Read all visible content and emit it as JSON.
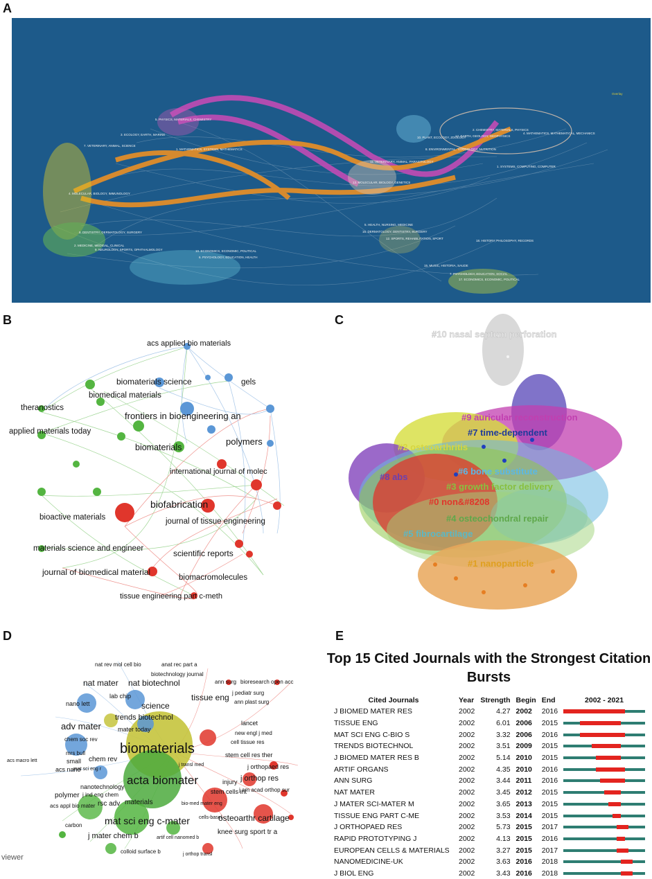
{
  "panels": {
    "a": "A",
    "b": "B",
    "c": "C",
    "d": "D",
    "e": "E"
  },
  "colors": {
    "panel_a_bg": "#1d5a8a",
    "red_cluster": "#e0362c",
    "green_cluster": "#54b541",
    "blue_cluster": "#5b97d6",
    "yellow_cluster": "#c9d12a",
    "burst_red": "#e3241f",
    "burst_track": "#2e7d72"
  },
  "panel_a": {
    "left_labels": [
      "5. PHYSICS, MATERIALS, CHEMISTRY",
      "3. ECOLOGY, EARTH, MARINE",
      "7. VETERINARY, ANIMAL, SCIENCE",
      "1. MATHEMATICS, SYSTEMS, MATHEMATICS",
      "4. MOLECULAR, BIOLOGY, IMMUNOLOGY",
      "8. DENTISTRY, DERMATOLOGY, SURGERY",
      "2. MEDICINE, MEDICAL, CLINICAL",
      "9. NEUROLOGY, SPORTS, OPHTHALMOLOGY",
      "6. PSYCHOLOGY, EDUCATION, HEALTH",
      "10. ECONOMICS, ECONOMIC, POLITICAL"
    ],
    "right_labels": [
      "2. CHEMISTRY, MATERIALS, PHYSICS",
      "4. MATHEMATICS, MATHEMATICAL, MECHANICS",
      "10. PLANT, ECOLOGY, ZOOLOGY",
      "14. EARTH, GEOLOGY, GEOPHYSICS",
      "8. ENVIRONMENTAL, TOXICOLOGY, NUTRITION",
      "1. SYSTEMS, COMPUTING, COMPUTER",
      "11. VETERINARY, ANIMAL, PARASITOLOGY",
      "13. MOLECULAR, BIOLOGY, GENETICS",
      "5. HEALTH, NURSING, MEDICINE",
      "16. DERMATOLOGY, DENTISTRY, SURGERY",
      "12. SPORTS, REHABILITATION, SPORT",
      "18. HISTORY, PHILOSOPHY, RECORDS",
      "15. MUSIC, HISTORIA, SAUDE",
      "7. PSYCHOLOGY, EDUCATION, SOCIAL",
      "17. ECONOMICS, ECONOMIC, POLITICAL"
    ],
    "legend": "Overlay"
  },
  "panel_b": {
    "labels": [
      "acs applied bio materials",
      "biomaterials science",
      "biomedical materials",
      "gels",
      "theranostics",
      "frontiers in bioengineering an",
      "applied materials today",
      "polymers",
      "biomaterials",
      "international journal of molec",
      "bioactive materials",
      "biofabrication",
      "journal of tissue engineering",
      "materials science and engineer",
      "scientific reports",
      "journal of biomedical material",
      "biomacromolecules",
      "tissue engineering part c-meth"
    ]
  },
  "panel_c": {
    "clusters": [
      "#10 nasal septum perforation",
      "#9 auricular reconstruction",
      "#7 time-dependent",
      "#2 osteoarthritis",
      "#6 bone substitute",
      "#8 abs",
      "#3 growth factor delivery",
      "#0 non&#8208",
      "#4 osteochondral repair",
      "#5 fibrocartilage",
      "#1 nanoparticle"
    ]
  },
  "panel_d": {
    "labels": [
      "nat rev mol cell bio",
      "anat rec part a",
      "biotechnology journal",
      "nat mater",
      "nat biotechnol",
      "ann surg",
      "bioresearch open acc",
      "lab chip",
      "j pediatr surg",
      "tissue eng",
      "ann plast surg",
      "nano lett",
      "science",
      "trends biotechnol",
      "adv mater",
      "mater today",
      "lancet",
      "new engl j med",
      "chem soc rev",
      "biomaterials",
      "cell tissue res",
      "acs macro lett",
      "small",
      "chem rev",
      "mrs bull",
      "stem cell res ther",
      "acs nano",
      "mat sci eng r",
      "j orthopaed res",
      "acta biomater",
      "j transl med",
      "injury",
      "j orthop res",
      "nanotechnology",
      "polymer",
      "stem cells int",
      "j ind eng chem",
      "j am acad orthop sur",
      "rsc adv",
      "bio-med mater eng",
      "acs appl bio mater",
      "materials",
      "osteoarthr cartilage",
      "cells-basel",
      "mat sci eng c-mater",
      "carbon",
      "knee surg sport tr a",
      "j mater chem b",
      "artif cell nanomed b",
      "colloid surface b",
      "j orthop transl"
    ],
    "viewer": "viewer"
  },
  "panel_e": {
    "title": "Top 15 Cited Journals with the Strongest Citation Bursts",
    "headers": {
      "journal": "Cited Journals",
      "year": "Year",
      "strength": "Strength",
      "begin": "Begin",
      "end": "End",
      "range": "2002 - 2021"
    },
    "range_start": 2002,
    "range_end": 2021
  },
  "chart_data": [
    {
      "type": "table",
      "title": "Top 15 Cited Journals with the Strongest Citation Bursts",
      "columns": [
        "Cited Journals",
        "Year",
        "Strength",
        "Begin",
        "End"
      ],
      "range": [
        2002,
        2021
      ],
      "rows": [
        {
          "journal": "J BIOMED MATER RES",
          "year": 2002,
          "strength": 4.27,
          "begin": 2002,
          "end": 2016
        },
        {
          "journal": "TISSUE ENG",
          "year": 2002,
          "strength": 6.01,
          "begin": 2006,
          "end": 2015
        },
        {
          "journal": "MAT SCI ENG C-BIO S",
          "year": 2002,
          "strength": 3.32,
          "begin": 2006,
          "end": 2016
        },
        {
          "journal": "TRENDS BIOTECHNOL",
          "year": 2002,
          "strength": 3.51,
          "begin": 2009,
          "end": 2015
        },
        {
          "journal": "J BIOMED MATER RES B",
          "year": 2002,
          "strength": 5.14,
          "begin": 2010,
          "end": 2015
        },
        {
          "journal": "ARTIF ORGANS",
          "year": 2002,
          "strength": 4.35,
          "begin": 2010,
          "end": 2016
        },
        {
          "journal": "ANN SURG",
          "year": 2002,
          "strength": 3.44,
          "begin": 2011,
          "end": 2016
        },
        {
          "journal": "NAT MATER",
          "year": 2002,
          "strength": 3.45,
          "begin": 2012,
          "end": 2015
        },
        {
          "journal": "J MATER SCI-MATER M",
          "year": 2002,
          "strength": 3.65,
          "begin": 2013,
          "end": 2015
        },
        {
          "journal": "TISSUE ENG PART C-ME",
          "year": 2002,
          "strength": 3.53,
          "begin": 2014,
          "end": 2015
        },
        {
          "journal": "J ORTHOPAED RES",
          "year": 2002,
          "strength": 5.73,
          "begin": 2015,
          "end": 2017
        },
        {
          "journal": "RAPID PROTOTYPING J",
          "year": 2002,
          "strength": 4.13,
          "begin": 2015,
          "end": 2016
        },
        {
          "journal": "EUROPEAN CELLS & MATERIALS",
          "year": 2002,
          "strength": 3.27,
          "begin": 2015,
          "end": 2017
        },
        {
          "journal": "NANOMEDICINE-UK",
          "year": 2002,
          "strength": 3.63,
          "begin": 2016,
          "end": 2018
        },
        {
          "journal": "J BIOL ENG",
          "year": 2002,
          "strength": 3.43,
          "begin": 2016,
          "end": 2018
        }
      ]
    }
  ]
}
